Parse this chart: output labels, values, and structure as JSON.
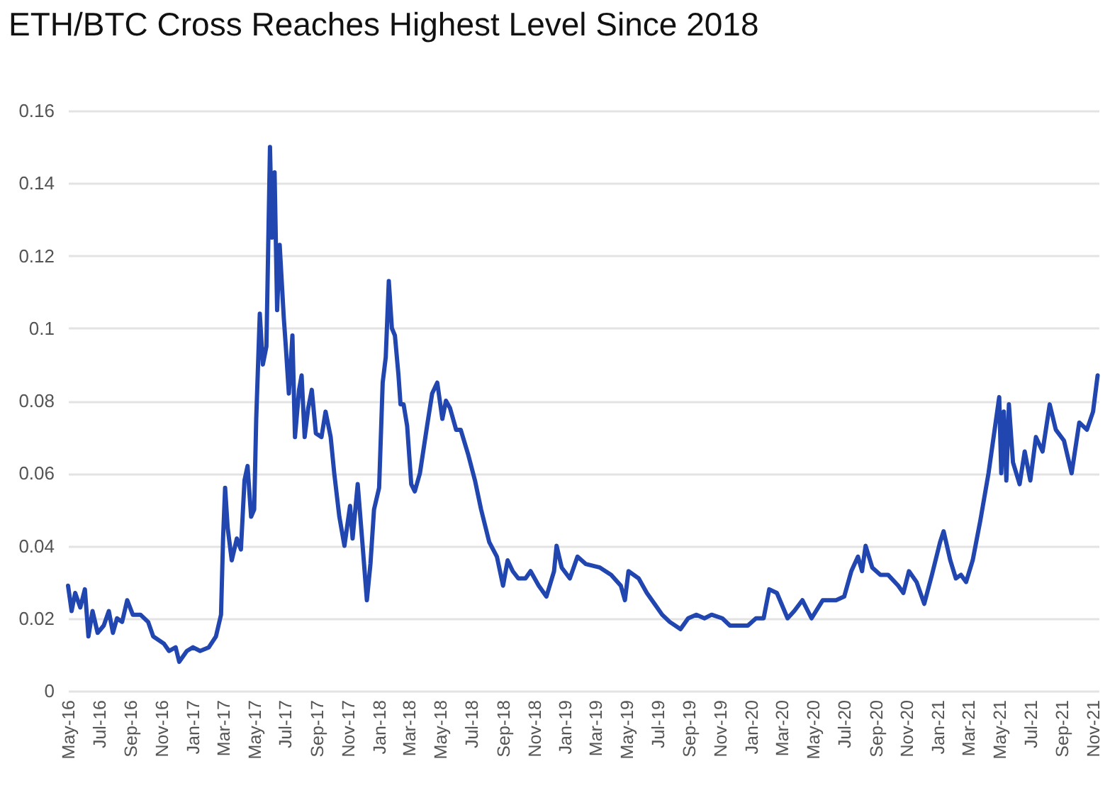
{
  "chart_data": {
    "type": "line",
    "title": "ETH/BTC Cross Reaches Highest Level Since 2018",
    "x": [
      "2016-05-01",
      "2016-05-08",
      "2016-05-15",
      "2016-05-25",
      "2016-06-03",
      "2016-06-10",
      "2016-06-18",
      "2016-06-28",
      "2016-07-10",
      "2016-07-20",
      "2016-07-28",
      "2016-08-05",
      "2016-08-15",
      "2016-08-25",
      "2016-09-05",
      "2016-09-20",
      "2016-10-05",
      "2016-10-15",
      "2016-11-05",
      "2016-11-15",
      "2016-11-28",
      "2016-12-05",
      "2016-12-20",
      "2017-01-01",
      "2017-01-15",
      "2017-02-01",
      "2017-02-15",
      "2017-02-25",
      "2017-03-01",
      "2017-03-05",
      "2017-03-10",
      "2017-03-18",
      "2017-03-28",
      "2017-04-05",
      "2017-04-12",
      "2017-04-18",
      "2017-04-25",
      "2017-05-01",
      "2017-05-05",
      "2017-05-12",
      "2017-05-18",
      "2017-05-25",
      "2017-06-01",
      "2017-06-05",
      "2017-06-10",
      "2017-06-15",
      "2017-06-20",
      "2017-06-28",
      "2017-07-02",
      "2017-07-08",
      "2017-07-15",
      "2017-07-20",
      "2017-07-28",
      "2017-08-02",
      "2017-08-08",
      "2017-08-15",
      "2017-08-22",
      "2017-08-30",
      "2017-09-10",
      "2017-09-18",
      "2017-09-28",
      "2017-10-05",
      "2017-10-15",
      "2017-10-25",
      "2017-11-05",
      "2017-11-10",
      "2017-11-20",
      "2017-11-28",
      "2017-12-08",
      "2017-12-15",
      "2017-12-22",
      "2018-01-01",
      "2018-01-08",
      "2018-01-14",
      "2018-01-20",
      "2018-01-26",
      "2018-02-01",
      "2018-02-08",
      "2018-02-12",
      "2018-02-18",
      "2018-02-25",
      "2018-03-05",
      "2018-03-12",
      "2018-03-22",
      "2018-04-05",
      "2018-04-15",
      "2018-04-25",
      "2018-05-05",
      "2018-05-12",
      "2018-05-20",
      "2018-06-01",
      "2018-06-10",
      "2018-06-25",
      "2018-07-08",
      "2018-07-20",
      "2018-08-05",
      "2018-08-20",
      "2018-09-01",
      "2018-09-10",
      "2018-09-20",
      "2018-10-01",
      "2018-10-15",
      "2018-10-25",
      "2018-11-10",
      "2018-11-25",
      "2018-12-10",
      "2018-12-15",
      "2018-12-25",
      "2019-01-10",
      "2019-01-25",
      "2019-02-10",
      "2019-03-10",
      "2019-04-01",
      "2019-04-20",
      "2019-04-28",
      "2019-05-05",
      "2019-05-25",
      "2019-06-10",
      "2019-06-25",
      "2019-07-10",
      "2019-07-25",
      "2019-08-15",
      "2019-08-30",
      "2019-09-15",
      "2019-10-01",
      "2019-10-15",
      "2019-11-05",
      "2019-11-20",
      "2019-12-10",
      "2019-12-25",
      "2020-01-10",
      "2020-01-25",
      "2020-02-05",
      "2020-02-20",
      "2020-03-12",
      "2020-03-25",
      "2020-04-10",
      "2020-04-28",
      "2020-05-20",
      "2020-06-15",
      "2020-07-01",
      "2020-07-15",
      "2020-07-28",
      "2020-08-05",
      "2020-08-12",
      "2020-08-25",
      "2020-09-10",
      "2020-09-25",
      "2020-10-15",
      "2020-10-25",
      "2020-11-05",
      "2020-11-20",
      "2020-12-05",
      "2020-12-20",
      "2021-01-05",
      "2021-01-12",
      "2021-01-25",
      "2021-02-05",
      "2021-02-15",
      "2021-02-25",
      "2021-03-10",
      "2021-03-25",
      "2021-04-10",
      "2021-05-01",
      "2021-05-05",
      "2021-05-10",
      "2021-05-15",
      "2021-05-20",
      "2021-05-28",
      "2021-06-10",
      "2021-06-20",
      "2021-07-01",
      "2021-07-12",
      "2021-07-25",
      "2021-08-08",
      "2021-08-20",
      "2021-09-05",
      "2021-09-20",
      "2021-10-05",
      "2021-10-20",
      "2021-11-01",
      "2021-11-10"
    ],
    "series": [
      {
        "color": "#2246b0",
        "values": [
          0.029,
          0.022,
          0.027,
          0.023,
          0.028,
          0.015,
          0.022,
          0.016,
          0.018,
          0.022,
          0.016,
          0.02,
          0.019,
          0.025,
          0.021,
          0.021,
          0.019,
          0.015,
          0.013,
          0.011,
          0.012,
          0.008,
          0.011,
          0.012,
          0.011,
          0.012,
          0.015,
          0.021,
          0.042,
          0.056,
          0.045,
          0.036,
          0.042,
          0.039,
          0.058,
          0.062,
          0.048,
          0.05,
          0.075,
          0.104,
          0.09,
          0.095,
          0.15,
          0.125,
          0.143,
          0.105,
          0.123,
          0.103,
          0.095,
          0.082,
          0.098,
          0.07,
          0.083,
          0.087,
          0.07,
          0.078,
          0.083,
          0.071,
          0.07,
          0.077,
          0.07,
          0.06,
          0.048,
          0.04,
          0.051,
          0.042,
          0.057,
          0.043,
          0.025,
          0.035,
          0.05,
          0.056,
          0.085,
          0.092,
          0.113,
          0.1,
          0.098,
          0.087,
          0.079,
          0.079,
          0.073,
          0.057,
          0.055,
          0.06,
          0.073,
          0.082,
          0.085,
          0.075,
          0.08,
          0.078,
          0.072,
          0.072,
          0.065,
          0.058,
          0.05,
          0.041,
          0.037,
          0.029,
          0.036,
          0.033,
          0.031,
          0.031,
          0.033,
          0.029,
          0.026,
          0.033,
          0.04,
          0.034,
          0.031,
          0.037,
          0.035,
          0.034,
          0.032,
          0.029,
          0.025,
          0.033,
          0.031,
          0.027,
          0.024,
          0.021,
          0.019,
          0.017,
          0.02,
          0.021,
          0.02,
          0.021,
          0.02,
          0.018,
          0.018,
          0.018,
          0.02,
          0.02,
          0.028,
          0.027,
          0.02,
          0.022,
          0.025,
          0.02,
          0.025,
          0.025,
          0.026,
          0.033,
          0.037,
          0.033,
          0.04,
          0.034,
          0.032,
          0.032,
          0.029,
          0.027,
          0.033,
          0.03,
          0.024,
          0.032,
          0.041,
          0.044,
          0.036,
          0.031,
          0.032,
          0.03,
          0.036,
          0.047,
          0.06,
          0.081,
          0.06,
          0.077,
          0.058,
          0.079,
          0.063,
          0.057,
          0.066,
          0.058,
          0.07,
          0.066,
          0.079,
          0.072,
          0.069,
          0.06,
          0.074,
          0.072,
          0.077,
          0.087
        ]
      }
    ],
    "xlim": [
      "2016-05-01",
      "2021-11-12"
    ],
    "xticks": [
      {
        "value": "2016-05",
        "label": "May-16"
      },
      {
        "value": "2016-07",
        "label": "Jul-16"
      },
      {
        "value": "2016-09",
        "label": "Sep-16"
      },
      {
        "value": "2016-11",
        "label": "Nov-16"
      },
      {
        "value": "2017-01",
        "label": "Jan-17"
      },
      {
        "value": "2017-03",
        "label": "Mar-17"
      },
      {
        "value": "2017-05",
        "label": "May-17"
      },
      {
        "value": "2017-07",
        "label": "Jul-17"
      },
      {
        "value": "2017-09",
        "label": "Sep-17"
      },
      {
        "value": "2017-11",
        "label": "Nov-17"
      },
      {
        "value": "2018-01",
        "label": "Jan-18"
      },
      {
        "value": "2018-03",
        "label": "Mar-18"
      },
      {
        "value": "2018-05",
        "label": "May-18"
      },
      {
        "value": "2018-07",
        "label": "Jul-18"
      },
      {
        "value": "2018-09",
        "label": "Sep-18"
      },
      {
        "value": "2018-11",
        "label": "Nov-18"
      },
      {
        "value": "2019-01",
        "label": "Jan-19"
      },
      {
        "value": "2019-03",
        "label": "Mar-19"
      },
      {
        "value": "2019-05",
        "label": "May-19"
      },
      {
        "value": "2019-07",
        "label": "Jul-19"
      },
      {
        "value": "2019-09",
        "label": "Sep-19"
      },
      {
        "value": "2019-11",
        "label": "Nov-19"
      },
      {
        "value": "2020-01",
        "label": "Jan-20"
      },
      {
        "value": "2020-03",
        "label": "Mar-20"
      },
      {
        "value": "2020-05",
        "label": "May-20"
      },
      {
        "value": "2020-07",
        "label": "Jul-20"
      },
      {
        "value": "2020-09",
        "label": "Sep-20"
      },
      {
        "value": "2020-11",
        "label": "Nov-20"
      },
      {
        "value": "2021-01",
        "label": "Jan-21"
      },
      {
        "value": "2021-03",
        "label": "Mar-21"
      },
      {
        "value": "2021-05",
        "label": "May-21"
      },
      {
        "value": "2021-07",
        "label": "Jul-21"
      },
      {
        "value": "2021-09",
        "label": "Sep-21"
      },
      {
        "value": "2021-11",
        "label": "Nov-21"
      }
    ],
    "ylim": [
      0,
      0.16
    ],
    "yticks": [
      0,
      0.02,
      0.04,
      0.06,
      0.08,
      0.1,
      0.12,
      0.14,
      0.16
    ],
    "grid": "y"
  }
}
